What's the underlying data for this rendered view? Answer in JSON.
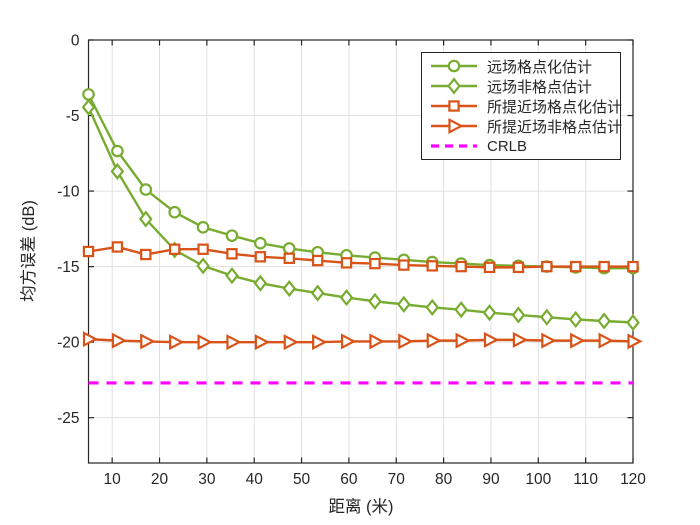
{
  "figure": {
    "background": "#ffffff",
    "frame_color": "#262626",
    "grid_color": "#e0e0e0",
    "tick_label_color": "#262626"
  },
  "chart_data": {
    "type": "line",
    "title": "",
    "xlabel": "距离 (米)",
    "ylabel": "均方误差 (dB)",
    "xlim": [
      5,
      120
    ],
    "ylim": [
      -28,
      0
    ],
    "xticks": [
      10,
      20,
      30,
      40,
      50,
      60,
      70,
      80,
      90,
      100,
      110,
      120
    ],
    "yticks": [
      0,
      -5,
      -10,
      -15,
      -20,
      -25
    ],
    "grid": true,
    "legend_position": "top-right-inside",
    "x": [
      5,
      11.1,
      17.1,
      23.2,
      29.2,
      35.3,
      41.3,
      47.4,
      53.4,
      59.5,
      65.5,
      71.6,
      77.6,
      83.7,
      89.7,
      95.8,
      101.8,
      107.9,
      113.9,
      120
    ],
    "series": [
      {
        "key": "far-grid",
        "name": "远场格点化估计",
        "color": "#77AC30",
        "marker": "circle",
        "dash": "solid",
        "values": [
          -3.6,
          -7.35,
          -9.9,
          -11.4,
          -12.4,
          -12.95,
          -13.45,
          -13.8,
          -14.05,
          -14.25,
          -14.4,
          -14.55,
          -14.7,
          -14.8,
          -14.9,
          -14.95,
          -15.0,
          -15.05,
          -15.1,
          -15.1
        ]
      },
      {
        "key": "far-offgrid",
        "name": "远场非格点估计",
        "color": "#77AC30",
        "marker": "diamond",
        "dash": "solid",
        "values": [
          -4.45,
          -8.7,
          -11.85,
          -13.9,
          -14.95,
          -15.6,
          -16.1,
          -16.45,
          -16.75,
          -17.05,
          -17.3,
          -17.5,
          -17.7,
          -17.85,
          -18.05,
          -18.2,
          -18.35,
          -18.5,
          -18.6,
          -18.7
        ]
      },
      {
        "key": "near-grid",
        "name": "所提近场格点化估计",
        "color": "#D95319",
        "marker": "square",
        "dash": "solid",
        "values": [
          -14.0,
          -13.7,
          -14.2,
          -13.85,
          -13.85,
          -14.15,
          -14.35,
          -14.45,
          -14.6,
          -14.75,
          -14.8,
          -14.9,
          -14.95,
          -15.0,
          -15.05,
          -15.05,
          -15.0,
          -15.0,
          -15.0,
          -15.0
        ]
      },
      {
        "key": "near-offgrid",
        "name": "所提近场非格点估计",
        "color": "#D95319",
        "marker": "triangle-right",
        "dash": "solid",
        "values": [
          -19.8,
          -19.9,
          -19.95,
          -20.0,
          -20.0,
          -20.0,
          -20.0,
          -20.0,
          -20.0,
          -19.95,
          -19.95,
          -19.95,
          -19.9,
          -19.9,
          -19.85,
          -19.85,
          -19.9,
          -19.9,
          -19.9,
          -19.95
        ]
      },
      {
        "key": "crlb",
        "name": "CRLB",
        "color": "#FF00FF",
        "marker": "none",
        "dash": "dashed",
        "values": [
          -22.7,
          -22.7,
          -22.7,
          -22.7,
          -22.7,
          -22.7,
          -22.7,
          -22.7,
          -22.7,
          -22.7,
          -22.7,
          -22.7,
          -22.7,
          -22.7,
          -22.7,
          -22.7,
          -22.7,
          -22.7,
          -22.7,
          -22.7
        ]
      }
    ]
  }
}
